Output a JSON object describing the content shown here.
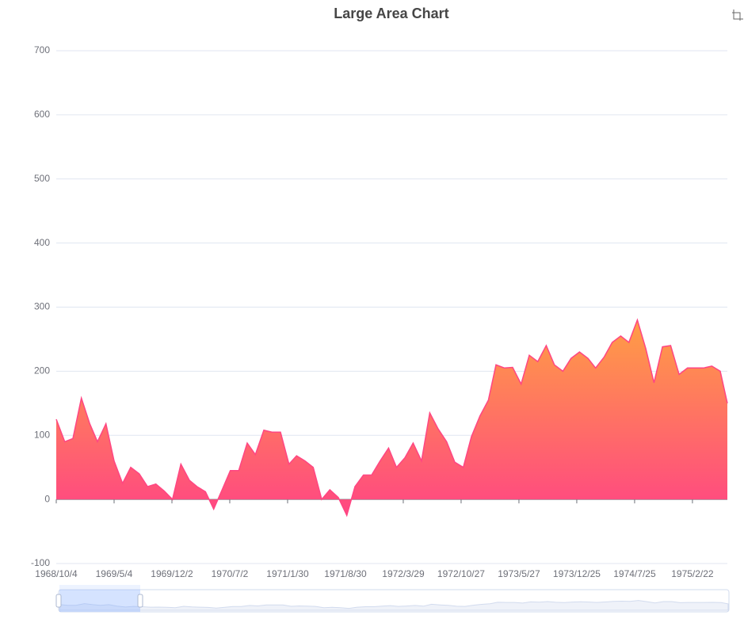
{
  "chart_data": {
    "type": "area",
    "title": "Large Area Chart",
    "x": [
      "1968/10/4",
      "1968/11/4",
      "1968/12/4",
      "1969/1/4",
      "1969/2/4",
      "1969/3/4",
      "1969/4/4",
      "1969/5/4",
      "1969/6/4",
      "1969/7/4",
      "1969/8/4",
      "1969/9/4",
      "1969/10/4",
      "1969/11/4",
      "1969/12/4",
      "1970/1/4",
      "1970/2/4",
      "1970/3/4",
      "1970/4/4",
      "1970/5/4",
      "1970/6/4",
      "1970/7/4",
      "1970/8/4",
      "1970/9/4",
      "1970/10/4",
      "1970/11/4",
      "1970/12/4",
      "1971/1/4",
      "1971/2/4",
      "1971/3/4",
      "1971/4/4",
      "1971/5/4",
      "1971/6/4",
      "1971/7/4",
      "1971/8/4",
      "1971/9/4",
      "1971/10/4",
      "1971/11/4",
      "1971/12/4",
      "1972/1/4",
      "1972/2/4",
      "1972/3/4",
      "1972/4/4",
      "1972/5/4",
      "1972/6/4",
      "1972/7/4",
      "1972/8/4",
      "1972/9/4",
      "1972/10/4",
      "1972/11/4",
      "1972/12/4",
      "1973/1/4",
      "1973/2/4",
      "1973/3/4",
      "1973/4/4",
      "1973/5/4",
      "1973/6/4",
      "1973/7/4",
      "1973/8/4",
      "1973/9/4",
      "1973/10/4",
      "1973/11/4",
      "1973/12/4",
      "1974/1/4",
      "1974/2/4",
      "1974/3/4",
      "1974/4/4",
      "1974/5/4",
      "1974/6/4",
      "1974/7/4",
      "1974/8/4",
      "1974/9/4",
      "1974/10/4",
      "1974/11/4",
      "1974/12/4",
      "1975/1/4",
      "1975/2/4",
      "1975/3/4",
      "1975/4/4",
      "1975/5/4",
      "1975/6/4",
      "1975/6/30"
    ],
    "values": [
      125,
      90,
      95,
      158,
      118,
      90,
      118,
      60,
      25,
      50,
      40,
      20,
      24,
      13,
      0,
      55,
      30,
      20,
      12,
      -15,
      15,
      45,
      45,
      88,
      70,
      108,
      105,
      105,
      55,
      68,
      60,
      50,
      0,
      15,
      3,
      -25,
      20,
      38,
      38,
      60,
      80,
      50,
      65,
      88,
      60,
      135,
      110,
      90,
      58,
      50,
      98,
      130,
      155,
      210,
      205,
      206,
      180,
      225,
      215,
      240,
      210,
      200,
      220,
      230,
      220,
      205,
      222,
      245,
      255,
      245,
      280,
      235,
      182,
      238,
      240,
      195,
      205,
      205,
      205,
      208,
      200,
      150
    ],
    "xlim": [
      "1968/10/4",
      "1975/6/30"
    ],
    "xticks": [
      "1968/10/4",
      "1969/5/4",
      "1969/12/2",
      "1970/7/2",
      "1971/1/30",
      "1971/8/30",
      "1972/3/29",
      "1972/10/27",
      "1973/5/27",
      "1973/12/25",
      "1974/7/25",
      "1975/2/22"
    ],
    "ylim": [
      -100,
      700
    ],
    "yticks": [
      -100,
      0,
      100,
      200,
      300,
      400,
      500,
      600,
      700
    ],
    "grid": true,
    "line_color": "#ff4683",
    "gradient": [
      "#ff9e44",
      "#ff4683"
    ]
  }
}
